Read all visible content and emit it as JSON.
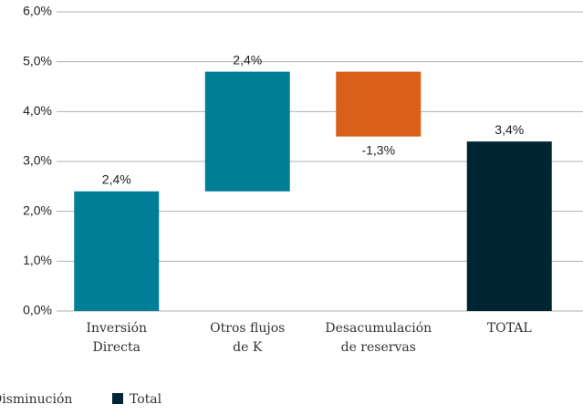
{
  "chart_data": {
    "type": "waterfall",
    "categories": [
      [
        "Inversión",
        "Directa"
      ],
      [
        "Otros flujos",
        "de K"
      ],
      [
        "Desacumulación",
        "de reservas"
      ],
      [
        "TOTAL"
      ]
    ],
    "values": [
      2.4,
      2.4,
      -1.3,
      3.4
    ],
    "value_labels": [
      "2,4%",
      "2,4%",
      "-1,3%",
      "3,4%"
    ],
    "colors": [
      "#007e98",
      "#007e98",
      "#d86018",
      "#002532"
    ],
    "totals": [
      false,
      false,
      false,
      true
    ],
    "ylim": [
      0,
      6
    ],
    "yticks": [
      {
        "value": 0,
        "label": "0,0%"
      },
      {
        "value": 1,
        "label": "1,0%"
      },
      {
        "value": 2,
        "label": "2,0%"
      },
      {
        "value": 3,
        "label": "3,0%"
      },
      {
        "value": 4,
        "label": "4,0%"
      },
      {
        "value": 5,
        "label": "5,0%"
      },
      {
        "value": 6,
        "label": "6,0%"
      }
    ],
    "grid": true,
    "legend": [
      {
        "name": "Disminución",
        "color": "#d86018"
      },
      {
        "name": "Total",
        "color": "#002532"
      }
    ]
  }
}
